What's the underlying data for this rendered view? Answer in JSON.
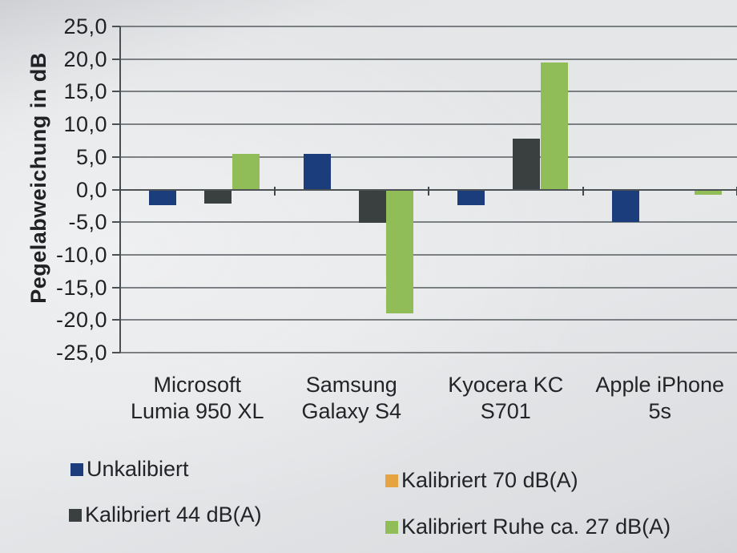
{
  "chart_data": {
    "type": "bar",
    "title": "",
    "ylabel": "Pegelabweichung in dB",
    "xlabel": "",
    "ylim": [
      -25,
      25
    ],
    "ytick_step": 5,
    "ytick_labels": [
      "25,0",
      "20,0",
      "15,0",
      "10,0",
      "5,0",
      "0,0",
      "-5,0",
      "-10,0",
      "-15,0",
      "-20,0",
      "-25,0"
    ],
    "grid": "horizontal",
    "grid_color": "#5c6165",
    "legend_position": "bottom",
    "categories": [
      [
        "Microsoft",
        "Lumia 950 XL"
      ],
      [
        "Samsung",
        "Galaxy S4"
      ],
      [
        "Kyocera KC",
        "S701"
      ],
      [
        "Apple iPhone",
        "5s"
      ]
    ],
    "series": [
      {
        "name": "Unkalibiert",
        "color": "#1c3d7b",
        "values": [
          -2.3,
          5.5,
          -2.3,
          -4.8
        ]
      },
      {
        "name": "Kalibriert 70 dB(A)",
        "color": "#e5a440",
        "values": [
          0.0,
          0.0,
          0.0,
          0.0
        ]
      },
      {
        "name": "Kalibriert 44 dB(A)",
        "color": "#39403f",
        "values": [
          -2.0,
          -5.0,
          7.8,
          0.0
        ]
      },
      {
        "name": "Kalibriert Ruhe ca. 27 dB(A)",
        "color": "#91bd59",
        "values": [
          5.5,
          -18.9,
          19.5,
          -0.7
        ]
      }
    ]
  }
}
